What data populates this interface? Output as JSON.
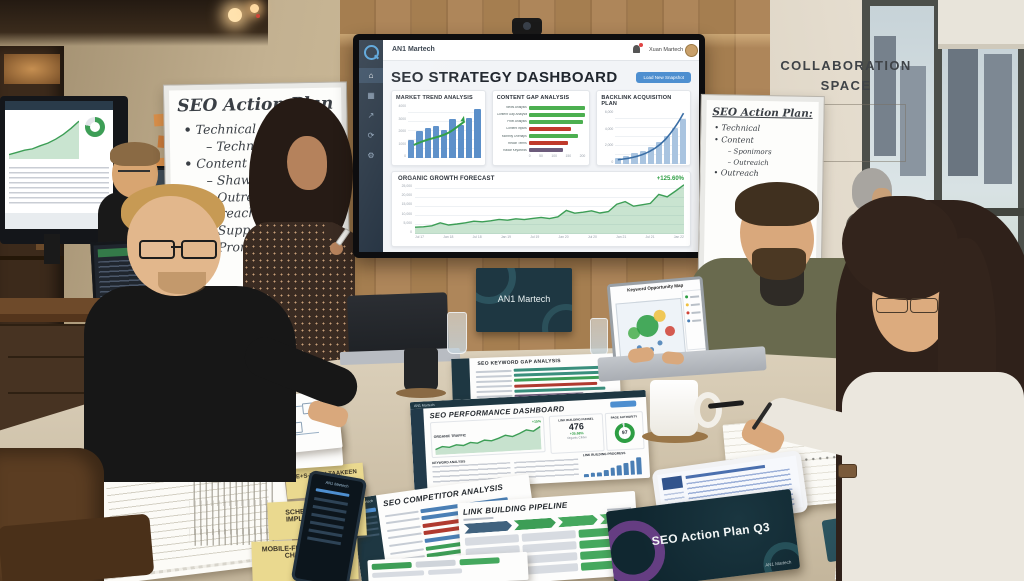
{
  "wall": {
    "collab_line1": "COLLABORATION",
    "collab_line2": "SPACE",
    "sign_text": "AN1 Martech"
  },
  "tv": {
    "brand": "AN1 Martech",
    "user": "Xuan Martech",
    "title": "SEO STRATEGY DASHBOARD",
    "action_button": "Load New Snapshot",
    "nav_icons": [
      {
        "name": "home",
        "glyph": "⌂"
      },
      {
        "name": "analytics",
        "glyph": "▦"
      },
      {
        "name": "trend",
        "glyph": "↗"
      },
      {
        "name": "refresh",
        "glyph": "⟳"
      },
      {
        "name": "settings",
        "glyph": "⚙"
      }
    ],
    "market": {
      "title": "MARKET TREND ANALYSIS",
      "yticks": [
        "4000",
        "3000",
        "2000",
        "1000",
        "0"
      ],
      "chart": {
        "type": "bar",
        "max": 4000,
        "color": "#5b8fc9",
        "values": [
          1300,
          2000,
          2250,
          2400,
          2050,
          2900,
          2450,
          3000,
          3650
        ]
      }
    },
    "gap": {
      "title": "CONTENT GAP ANALYSIS",
      "xticks": [
        "0",
        "50",
        "100",
        "150",
        "200"
      ],
      "chart": {
        "type": "hbar",
        "max": 200,
        "rows": [
          {
            "label": "News Analysis",
            "value": 185,
            "color": "#4caf50"
          },
          {
            "label": "Content Gap Analysis",
            "value": 168,
            "color": "#4caf50"
          },
          {
            "label": "Pixel Analysis",
            "value": 122,
            "color": "#4caf50"
          },
          {
            "label": "Content Inputs",
            "value": 96,
            "color": "#c0392b"
          },
          {
            "label": "Monthly Overlaps",
            "value": 112,
            "color": "#4caf50"
          },
          {
            "label": "Reach Terms",
            "value": 88,
            "color": "#c0392b"
          },
          {
            "label": "Radar Keywords",
            "value": 78,
            "color": "#6c5b7b"
          }
        ]
      }
    },
    "backlink": {
      "title": "BACKLINK ACQUISITION PLAN",
      "yticks": [
        "6,000",
        "4,000",
        "2,000",
        "0"
      ],
      "chart": {
        "type": "bar",
        "max": 6000,
        "color": "#a9c4e0",
        "values": [
          700,
          900,
          1200,
          1500,
          1900,
          2400,
          3100,
          4000,
          5000
        ]
      }
    },
    "forecast": {
      "title": "ORGANIC GROWTH FORECAST",
      "delta": "+125.60%",
      "yticks": [
        "25,000",
        "20,000",
        "15,000",
        "10,000",
        "5,000",
        "0"
      ],
      "xticks": [
        "Jul 17",
        "Jan 18",
        "Jul 18",
        "Jan 19",
        "Jul 19",
        "Jan 20",
        "Jul 20",
        "Jan 21",
        "Jul 21",
        "Jan 22"
      ],
      "chart": {
        "type": "area",
        "max": 25000,
        "color": "#3d9e56",
        "values": [
          3400,
          3600,
          4100,
          5600,
          4500,
          5000,
          5600,
          6400,
          6100,
          6600,
          7300,
          6900,
          7600,
          7200,
          7800,
          8300,
          7700,
          8600,
          11800,
          10400,
          10900,
          11600,
          10500,
          11200,
          14900,
          16200,
          13900,
          14600,
          15300,
          19800,
          18600,
          21500,
          24600
        ]
      }
    }
  },
  "bg_monitor": {
    "chart": {
      "type": "area",
      "max": 10,
      "color": "#3d9e56",
      "values": [
        1,
        1.5,
        2,
        2.3,
        3,
        3.6,
        4.5,
        5.6,
        7,
        8.6
      ]
    }
  },
  "wb_left": {
    "title": "SEO Action Plan",
    "b1": "Technical",
    "b1s1": "Technical",
    "b2": "Content",
    "b2s1": "Shawming e",
    "b2s2": "Outreach",
    "b3": "Outreach",
    "b3s1": "Support",
    "b3s2": "Prorhime"
  },
  "wb_right": {
    "title": "SEO Action Plan:",
    "b1": "Technical",
    "b2": "Content",
    "b2s1": "Sponimors",
    "b2s2": "Outreaich",
    "b3": "Outreach"
  },
  "laptop_map": {
    "title": "Keyword Opportunity Map",
    "chart": {
      "type": "bubbles",
      "bubbles": [
        {
          "x": 24,
          "y": 52,
          "r": 6,
          "c": "#4caf50"
        },
        {
          "x": 46,
          "y": 42,
          "r": 11,
          "c": "#2e9e44"
        },
        {
          "x": 66,
          "y": 26,
          "r": 6,
          "c": "#f0c040"
        },
        {
          "x": 79,
          "y": 54,
          "r": 5,
          "c": "#d04438"
        },
        {
          "x": 30,
          "y": 78,
          "r": 2.5,
          "c": "#4a7fb5"
        },
        {
          "x": 48,
          "y": 82,
          "r": 2.5,
          "c": "#4a7fb5"
        },
        {
          "x": 63,
          "y": 72,
          "r": 2.5,
          "c": "#4a7fb5"
        }
      ]
    }
  },
  "docs": {
    "perf": {
      "title": "SEO PERFORMANCE DASHBOARD",
      "brand": "AN1 Martech",
      "p1": "ORGANIC TRAFFIC",
      "p1_delta": "+15%",
      "p2": "LINK BUILDING FUNNEL",
      "metric": "476",
      "metric_delta": "+35.68%",
      "metric_sub": "Organic Clicks",
      "p3": "PAGE AUTHORITY",
      "authority": "97",
      "t1": "KEYWORD ANALYSIS",
      "t2": "LINK BUILDING PROGRESS",
      "spark": {
        "type": "area",
        "max": 9,
        "color": "#3d9e56",
        "values": [
          2,
          3,
          2.6,
          3.4,
          3,
          4,
          3.6,
          4.6,
          4.2,
          5,
          6,
          5.4,
          6.4,
          7.6,
          7,
          8.6
        ]
      },
      "bars": {
        "type": "bar",
        "max": 6,
        "color": "#4a7fb5",
        "values": [
          1,
          1.4,
          1.2,
          2,
          2.6,
          3.2,
          4,
          4.8,
          5.8
        ]
      }
    },
    "competitor": {
      "title": "SEO COMPETITOR ANALYSIS",
      "brand": "AN1 Martech",
      "chart": {
        "type": "hbar",
        "max": 100,
        "rows": [
          {
            "label": "",
            "value": 62,
            "color": "#4a7fb5"
          },
          {
            "label": "",
            "value": 78,
            "color": "#4a7fb5"
          },
          {
            "label": "",
            "value": 70,
            "color": "#b03a30"
          },
          {
            "label": "",
            "value": 64,
            "color": "#b03a30"
          },
          {
            "label": "",
            "value": 72,
            "color": "#4a7fb5"
          },
          {
            "label": "",
            "value": 52,
            "color": "#3d9e56"
          },
          {
            "label": "",
            "value": 46,
            "color": "#3d9e56"
          },
          {
            "label": "",
            "value": 56,
            "color": "#d9a43a"
          },
          {
            "label": "",
            "value": 48,
            "color": "#d9a43a"
          }
        ]
      }
    },
    "pipeline": {
      "title": "LINK BUILDING PIPELINE"
    },
    "gapsheet": {
      "title": "SEO KEYWORD GAP ANALYSIS",
      "chart": {
        "type": "hbar",
        "max": 100,
        "rows": [
          {
            "label": "",
            "value": 88,
            "color": "#3a8f7d"
          },
          {
            "label": "",
            "value": 80,
            "color": "#3a8f7d"
          },
          {
            "label": "",
            "value": 72,
            "color": "#3d9e56"
          },
          {
            "label": "",
            "value": 60,
            "color": "#b03a30"
          },
          {
            "label": "",
            "value": 66,
            "color": "#3a8f7d"
          },
          {
            "label": "",
            "value": 50,
            "color": "#6c5b7b"
          }
        ]
      }
    },
    "action_card": {
      "title": "SEO Action Plan Q3",
      "brand": "AN1 Martech"
    },
    "sticky1": "SE+S-HANH TAAKEEN",
    "sticky2": "SCHEMA MARKUP IMPLEMENTATION",
    "sticky3": "MOBILE-FIRST INDEXING CHECKLIST",
    "cards_stack": "AN1 Martech",
    "phone_brand": "AN1 Martech"
  }
}
